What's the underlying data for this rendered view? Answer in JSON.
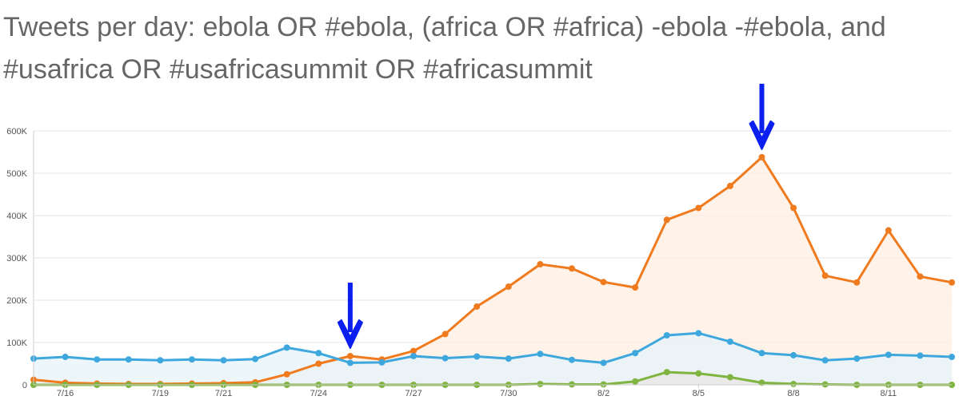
{
  "chart_data": {
    "type": "line",
    "title": "Tweets per day: ebola OR #ebola, (africa OR #africa) -ebola -#ebola, and #usafrica OR #usafricasummit OR #africasummit",
    "x": [
      "7/15",
      "7/16",
      "7/17",
      "7/18",
      "7/19",
      "7/20",
      "7/21",
      "7/22",
      "7/23",
      "7/24",
      "7/25",
      "7/26",
      "7/27",
      "7/28",
      "7/29",
      "7/30",
      "7/31",
      "8/1",
      "8/2",
      "8/3",
      "8/4",
      "8/5",
      "8/6",
      "8/7",
      "8/8",
      "8/9",
      "8/10",
      "8/11",
      "8/12",
      "8/13"
    ],
    "x_tick_labels": [
      "7/16",
      "7/19",
      "7/21",
      "7/24",
      "7/27",
      "7/30",
      "8/2",
      "8/5",
      "8/8",
      "8/11"
    ],
    "y_tick_labels": [
      "0",
      "100K",
      "200K",
      "300K",
      "400K",
      "500K",
      "600K"
    ],
    "ylim": [
      0,
      600000
    ],
    "grid": true,
    "series": [
      {
        "color": "#F07A1E",
        "fill": "#FDEEE2",
        "values": [
          12000,
          5000,
          3000,
          2000,
          2000,
          3000,
          4000,
          6000,
          25000,
          50000,
          68000,
          60000,
          80000,
          120000,
          185000,
          232000,
          285000,
          275000,
          243000,
          230000,
          390000,
          418000,
          470000,
          538000,
          418000,
          258000,
          242000,
          365000,
          256000,
          242000
        ]
      },
      {
        "color": "#3EA8DE",
        "fill": "#E6F3FA",
        "values": [
          62000,
          66000,
          60000,
          60000,
          58000,
          60000,
          58000,
          61000,
          88000,
          75000,
          52000,
          53000,
          68000,
          63000,
          67000,
          62000,
          73000,
          59000,
          52000,
          75000,
          117000,
          122000,
          102000,
          75000,
          70000,
          58000,
          62000,
          71000,
          69000,
          66000
        ]
      },
      {
        "color": "#80B440",
        "fill": "#E8E6E4",
        "values": [
          0,
          0,
          0,
          0,
          0,
          0,
          0,
          0,
          0,
          0,
          0,
          0,
          0,
          0,
          0,
          0,
          2000,
          1000,
          1000,
          8000,
          30000,
          27000,
          18000,
          5000,
          2000,
          1000,
          0,
          0,
          0,
          0
        ]
      }
    ],
    "annotations": [
      {
        "kind": "arrow",
        "color": "#0A1FF0",
        "x": "7/25",
        "y": 68000
      },
      {
        "kind": "arrow",
        "color": "#0A1FF0",
        "x": "8/7",
        "y": 538000
      }
    ],
    "colors": {
      "grid": "#E6E6E6",
      "axis": "#CCCCCC",
      "ticks": "#555555",
      "title": "#666666"
    }
  }
}
